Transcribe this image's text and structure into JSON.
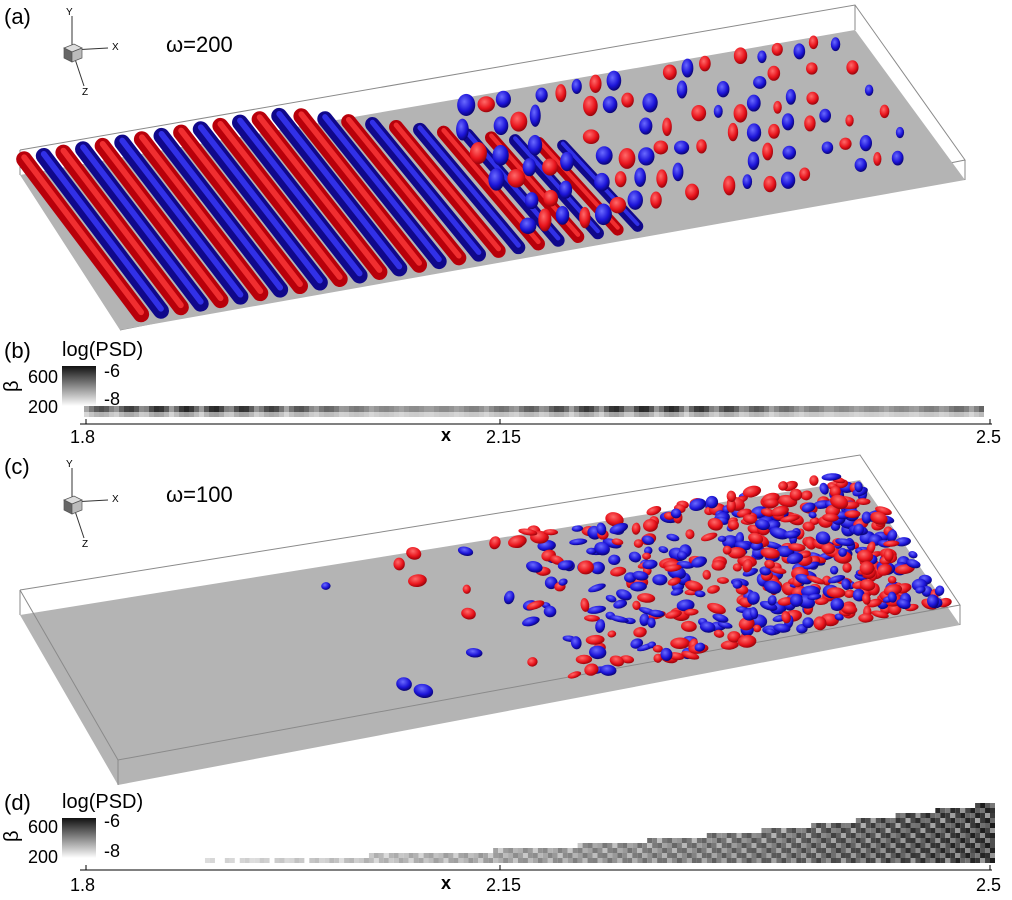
{
  "panels": {
    "a": {
      "label": "(a)",
      "omega_label": "ω=200"
    },
    "b": {
      "label": "(b)"
    },
    "c": {
      "label": "(c)",
      "omega_label": "ω=100"
    },
    "d": {
      "label": "(d)"
    }
  },
  "axis_triad": {
    "y": "Y",
    "x": "X",
    "z": "Z"
  },
  "colors": {
    "positive": "#e8141c",
    "negative": "#1c14d8",
    "plate": "#b4b4b4",
    "box_edge": "#8a8a8a"
  },
  "chart_data": [
    {
      "type": "heatmap",
      "panel": "(b)",
      "xlabel": "x",
      "ylabel": "β",
      "x_ticks": [
        "1.8",
        "2.15",
        "2.5"
      ],
      "y_ticks": [
        "600",
        "200"
      ],
      "xlim": [
        1.8,
        2.5
      ],
      "legend": {
        "title": "log(PSD)",
        "max": "-6",
        "min": "-8"
      }
    },
    {
      "type": "heatmap",
      "panel": "(d)",
      "xlabel": "x",
      "ylabel": "β",
      "x_ticks": [
        "1.8",
        "2.15",
        "2.5"
      ],
      "y_ticks": [
        "600",
        "200"
      ],
      "xlim": [
        1.8,
        2.5
      ],
      "legend": {
        "title": "log(PSD)",
        "max": "-6",
        "min": "-8"
      }
    }
  ]
}
